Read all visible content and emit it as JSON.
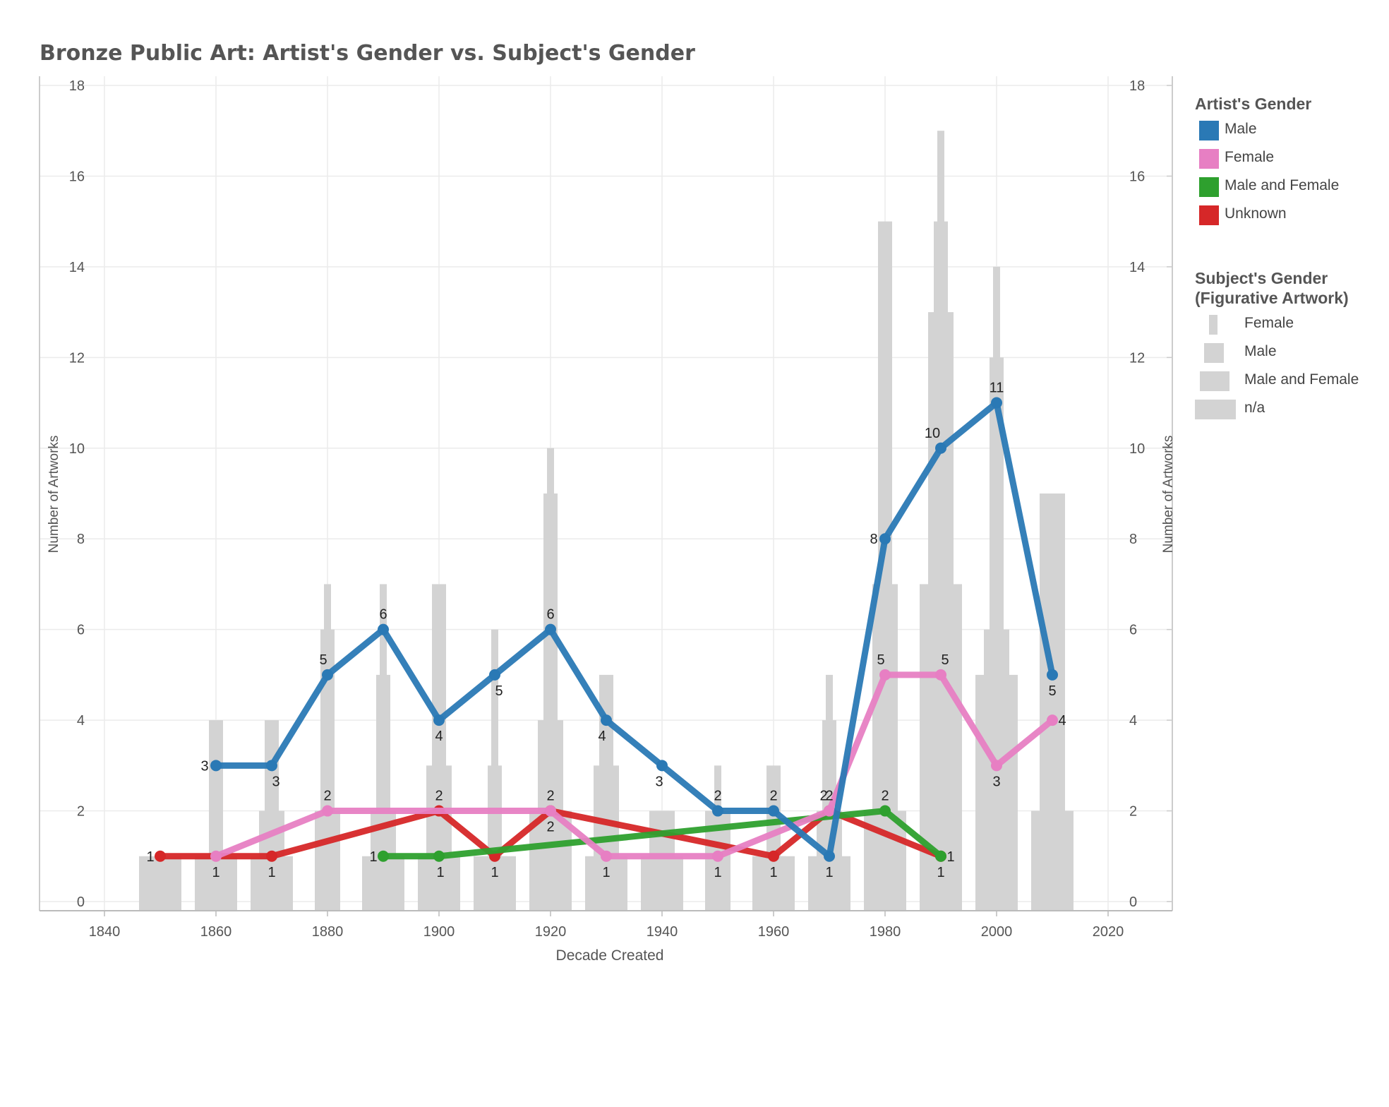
{
  "chart_data": {
    "type": "line",
    "title": "Bronze Public Art: Artist's Gender vs. Subject's Gender",
    "xlabel": "Decade Created",
    "ylabel": "Number of Artworks",
    "ylabel_right": "Number of Artworks",
    "xlim": [
      1836,
      2024
    ],
    "ylim": [
      0,
      18
    ],
    "x_ticks": [
      "1840",
      "1860",
      "1880",
      "1900",
      "1920",
      "1940",
      "1960",
      "1980",
      "2000",
      "2020"
    ],
    "y_ticks": [
      "0",
      "2",
      "4",
      "6",
      "8",
      "10",
      "12",
      "14",
      "16",
      "18"
    ],
    "grid": true,
    "series": [
      {
        "name": "Male",
        "color": "#2a79b5",
        "points": [
          [
            1860,
            3
          ],
          [
            1870,
            3
          ],
          [
            1880,
            5
          ],
          [
            1890,
            6
          ],
          [
            1900,
            4
          ],
          [
            1910,
            5
          ],
          [
            1920,
            6
          ],
          [
            1930,
            4
          ],
          [
            1940,
            3
          ],
          [
            1950,
            2
          ],
          [
            1960,
            2
          ],
          [
            1970,
            1
          ],
          [
            1980,
            8
          ],
          [
            1990,
            10
          ],
          [
            2000,
            11
          ],
          [
            2010,
            5
          ]
        ],
        "labels": [
          "3",
          "3",
          "5",
          "6",
          "4",
          "5",
          "6",
          "4",
          "3",
          "2",
          "2",
          "1",
          "8",
          "10",
          "11",
          "5"
        ]
      },
      {
        "name": "Female",
        "color": "#e77fc3",
        "points": [
          [
            1860,
            1
          ],
          [
            1880,
            2
          ],
          [
            1920,
            2
          ],
          [
            1930,
            1
          ],
          [
            1950,
            1
          ],
          [
            1970,
            2
          ],
          [
            1980,
            5
          ],
          [
            1990,
            5
          ],
          [
            2000,
            3
          ],
          [
            2010,
            4
          ]
        ],
        "labels": [
          "1",
          "2",
          "2",
          "1",
          "1",
          "2",
          "5",
          "5",
          "3",
          "4"
        ]
      },
      {
        "name": "Male and Female",
        "color": "#2ea02e",
        "points": [
          [
            1890,
            1
          ],
          [
            1900,
            1
          ],
          [
            1980,
            2
          ],
          [
            1990,
            1
          ]
        ],
        "labels": [
          "1",
          "1",
          "2",
          "1"
        ]
      },
      {
        "name": "Unknown",
        "color": "#d62728",
        "points": [
          [
            1850,
            1
          ],
          [
            1870,
            1
          ],
          [
            1900,
            2
          ],
          [
            1910,
            1
          ],
          [
            1920,
            2
          ],
          [
            1960,
            1
          ],
          [
            1970,
            2
          ],
          [
            1990,
            1
          ]
        ],
        "labels": [
          "1",
          "1",
          "2",
          "1",
          "2",
          "1",
          "2",
          "1"
        ]
      }
    ],
    "bars": {
      "series": [
        "Female",
        "Male",
        "Male and Female",
        "n/a"
      ],
      "color": "#d3d3d3",
      "decades": [
        {
          "x": 1850,
          "values": [
            0,
            0,
            0,
            1
          ]
        },
        {
          "x": 1860,
          "values": [
            0,
            4,
            1,
            1
          ]
        },
        {
          "x": 1870,
          "values": [
            0,
            4,
            2,
            1
          ]
        },
        {
          "x": 1880,
          "values": [
            7,
            6,
            2,
            0
          ]
        },
        {
          "x": 1890,
          "values": [
            7,
            5,
            2,
            1
          ]
        },
        {
          "x": 1900,
          "values": [
            0,
            7,
            3,
            1
          ]
        },
        {
          "x": 1910,
          "values": [
            6,
            3,
            1,
            1
          ]
        },
        {
          "x": 1920,
          "values": [
            10,
            9,
            4,
            2
          ]
        },
        {
          "x": 1930,
          "values": [
            0,
            5,
            3,
            1
          ]
        },
        {
          "x": 1940,
          "values": [
            0,
            2,
            2,
            1
          ]
        },
        {
          "x": 1950,
          "values": [
            3,
            2,
            2,
            0
          ]
        },
        {
          "x": 1960,
          "values": [
            0,
            3,
            1,
            1
          ]
        },
        {
          "x": 1970,
          "values": [
            5,
            4,
            2,
            1
          ]
        },
        {
          "x": 1980,
          "values": [
            9,
            15,
            7,
            2
          ]
        },
        {
          "x": 1990,
          "values": [
            17,
            15,
            13,
            7
          ]
        },
        {
          "x": 2000,
          "values": [
            14,
            12,
            6,
            5
          ]
        },
        {
          "x": 2010,
          "values": [
            0,
            0,
            9,
            2
          ]
        }
      ]
    }
  },
  "legend": {
    "artist_title": "Artist's Gender",
    "artist_items": [
      {
        "label": "Male",
        "color": "#2a79b5"
      },
      {
        "label": "Female",
        "color": "#e77fc3"
      },
      {
        "label": "Male and Female",
        "color": "#2ea02e"
      },
      {
        "label": "Unknown",
        "color": "#d62728"
      }
    ],
    "subject_title_line1": "Subject's Gender",
    "subject_title_line2": "(Figurative Artwork)",
    "subject_items": [
      {
        "label": "Female"
      },
      {
        "label": "Male"
      },
      {
        "label": "Male and Female"
      },
      {
        "label": "n/a"
      }
    ]
  }
}
